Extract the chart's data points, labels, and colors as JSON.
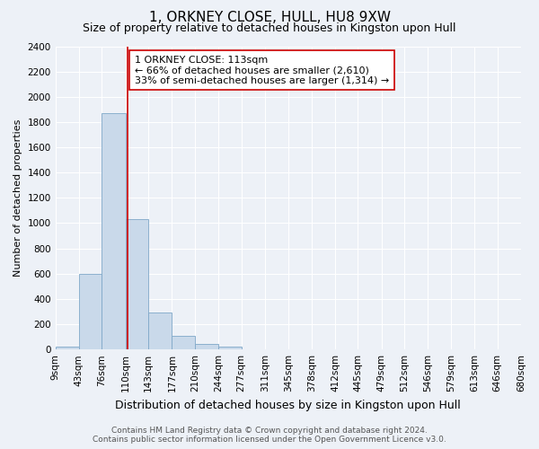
{
  "title": "1, ORKNEY CLOSE, HULL, HU8 9XW",
  "subtitle": "Size of property relative to detached houses in Kingston upon Hull",
  "xlabel": "Distribution of detached houses by size in Kingston upon Hull",
  "ylabel": "Number of detached properties",
  "bin_edges": [
    9,
    43,
    76,
    110,
    143,
    177,
    210,
    244,
    277,
    311,
    345,
    378,
    412,
    445,
    479,
    512,
    546,
    579,
    613,
    646,
    680
  ],
  "bar_heights": [
    20,
    600,
    1870,
    1030,
    290,
    110,
    45,
    20,
    0,
    0,
    0,
    0,
    0,
    0,
    0,
    0,
    0,
    0,
    0,
    0
  ],
  "bar_color": "#c9d9ea",
  "bar_edge_color": "#7fa8c8",
  "property_size": 113,
  "vline_color": "#cc0000",
  "annotation_line1": "1 ORKNEY CLOSE: 113sqm",
  "annotation_line2": "← 66% of detached houses are smaller (2,610)",
  "annotation_line3": "33% of semi-detached houses are larger (1,314) →",
  "annotation_box_facecolor": "#ffffff",
  "annotation_box_edgecolor": "#cc0000",
  "ylim": [
    0,
    2400
  ],
  "yticks": [
    0,
    200,
    400,
    600,
    800,
    1000,
    1200,
    1400,
    1600,
    1800,
    2000,
    2200,
    2400
  ],
  "bg_color": "#edf1f7",
  "grid_color": "#ffffff",
  "footer_text1": "Contains HM Land Registry data © Crown copyright and database right 2024.",
  "footer_text2": "Contains public sector information licensed under the Open Government Licence v3.0.",
  "title_fontsize": 11,
  "subtitle_fontsize": 9,
  "xlabel_fontsize": 9,
  "ylabel_fontsize": 8,
  "tick_fontsize": 7.5,
  "annotation_fontsize": 8,
  "footer_fontsize": 6.5
}
